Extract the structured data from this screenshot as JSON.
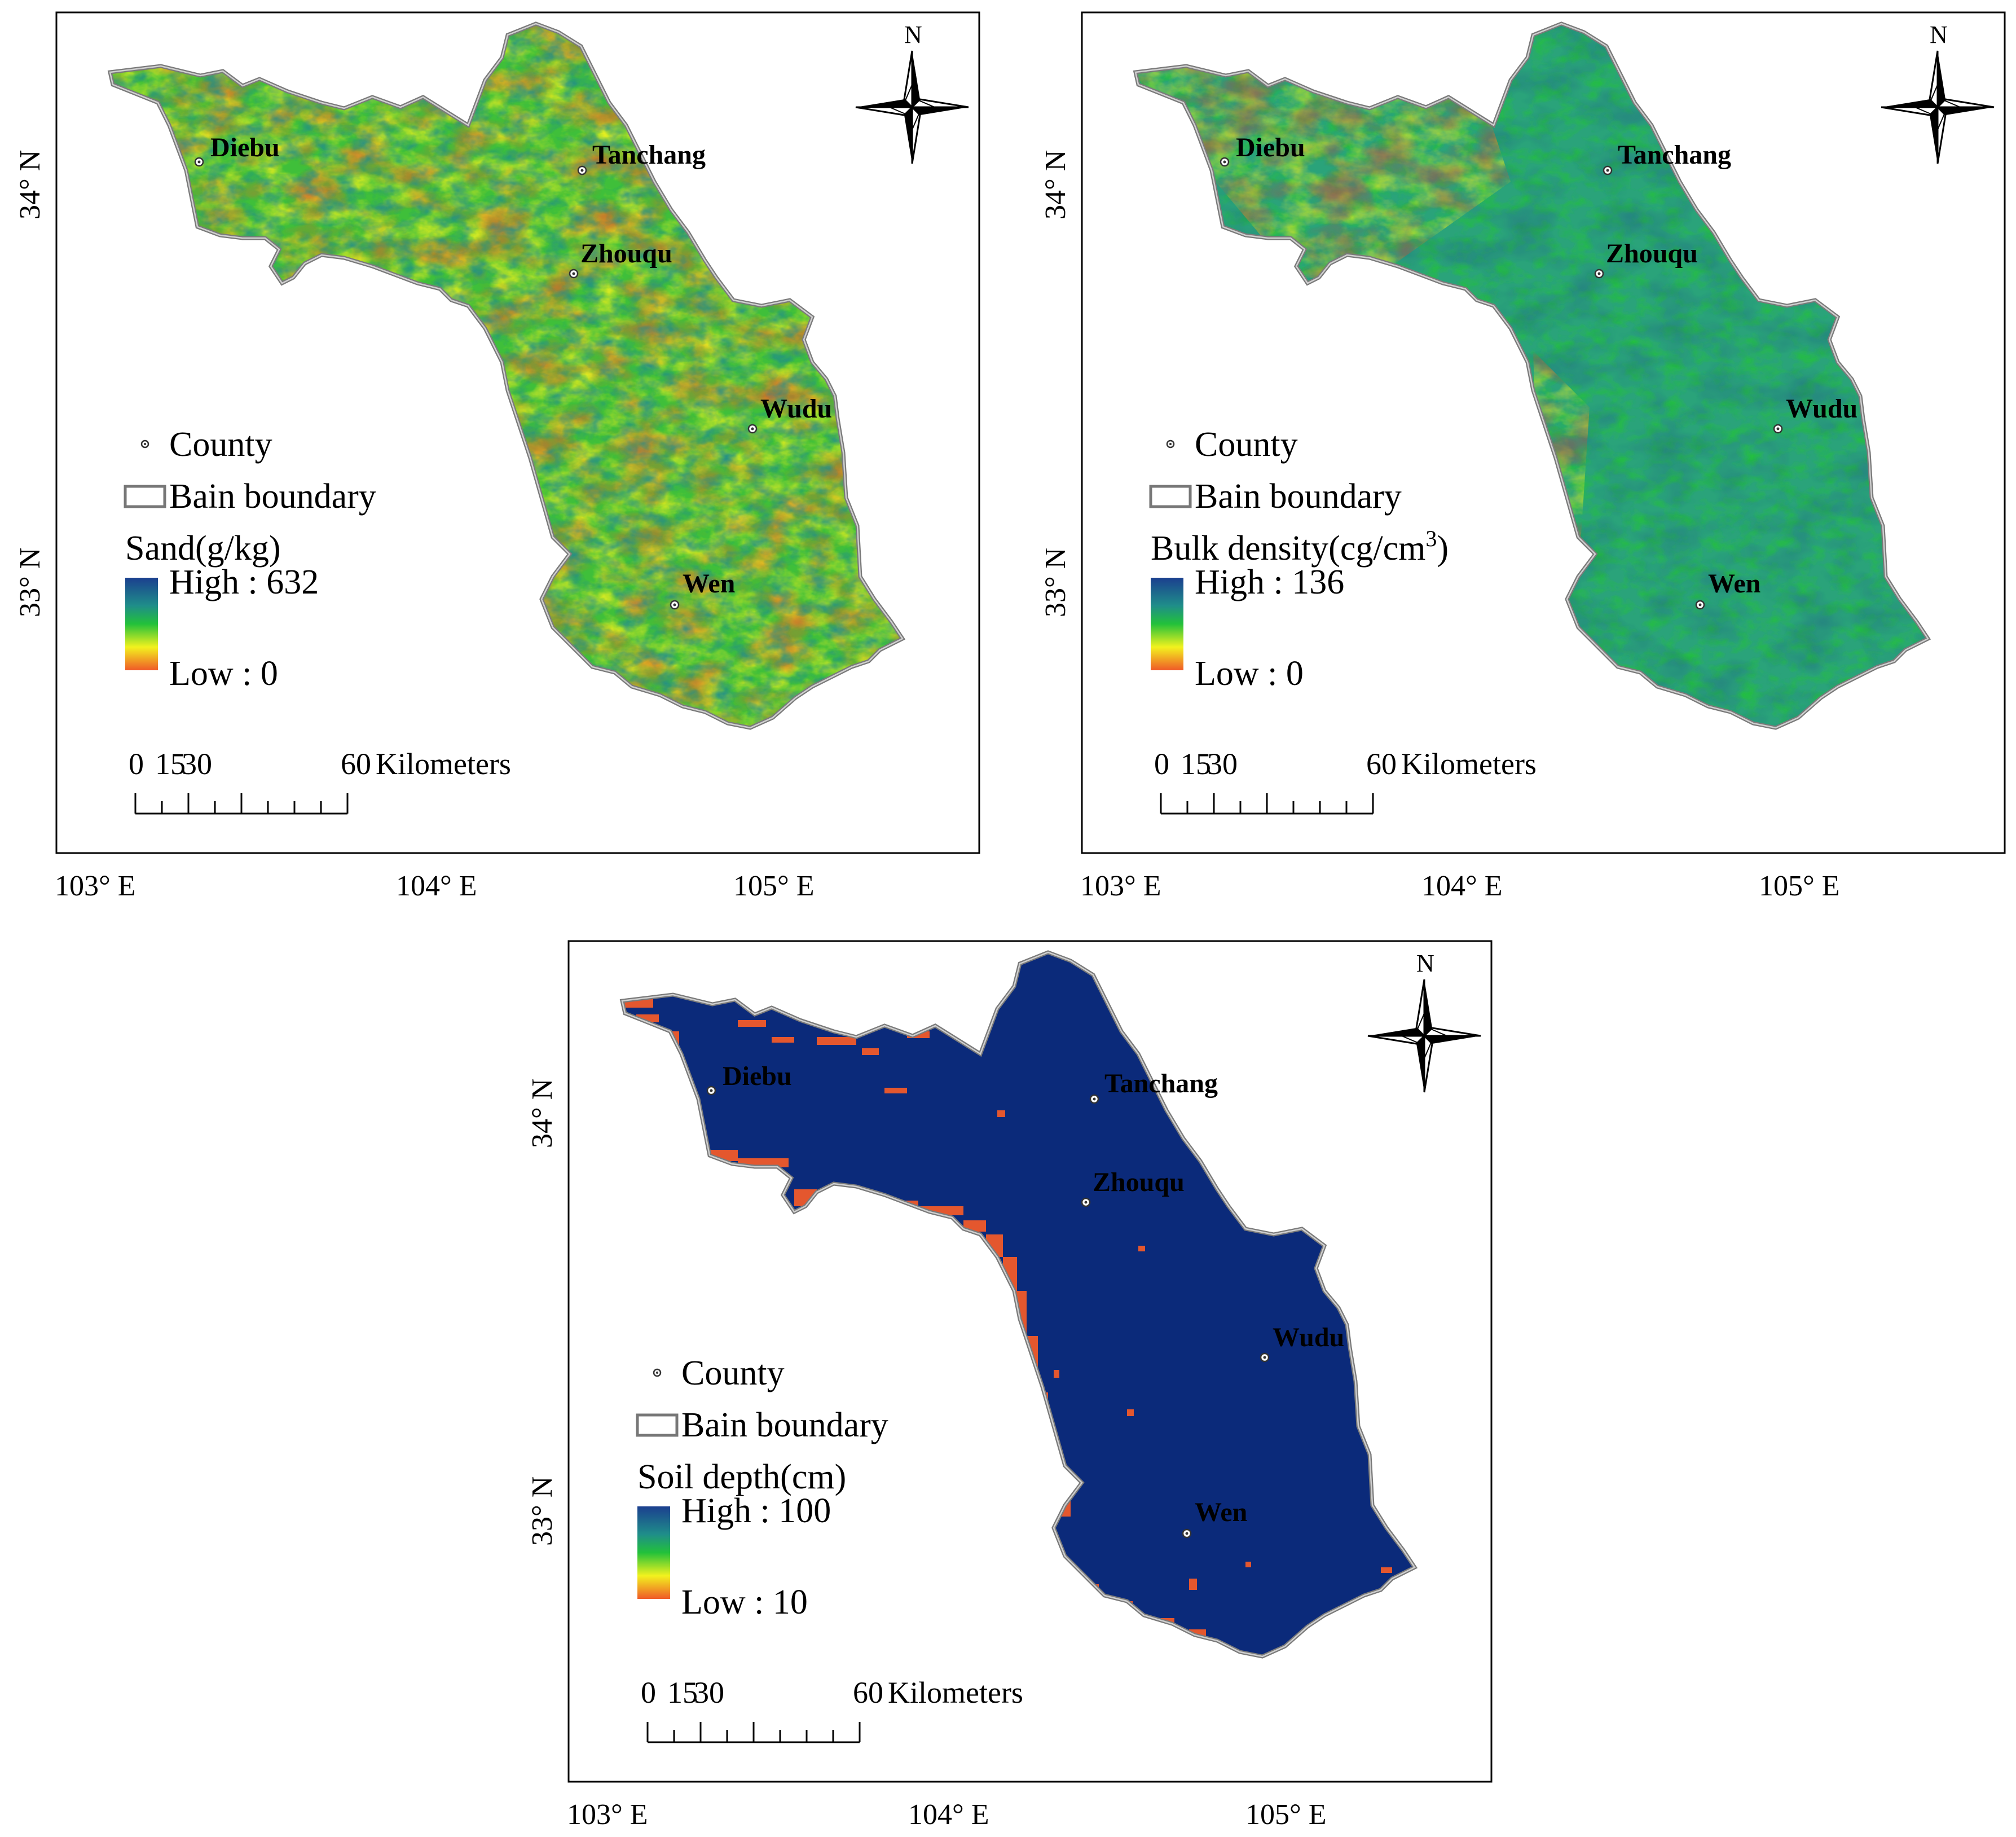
{
  "colors": {
    "ramp_high": "#1b3f8f",
    "ramp_mid_teal": "#1f8d8a",
    "ramp_green": "#22c13a",
    "ramp_yellow": "#f2f21e",
    "ramp_low": "#f05a28",
    "sand_base": "#3fbf3a",
    "bulk_base": "#2aa37a",
    "depth_base": "#0b2a7a",
    "depth_low": "#e4572e",
    "basin_outline": "#7a7a7a",
    "frame": "#000000"
  },
  "icons": {
    "north_arrow": "north-arrow-icon",
    "county_point": "county-point-icon",
    "boundary_swatch": "boundary-swatch-icon"
  },
  "panels": [
    {
      "id": "sand",
      "base_color_key": "sand_base",
      "legend": {
        "county": "County",
        "boundary": "Bain boundary",
        "title": "Sand(g/kg)",
        "high": "High : 632",
        "low": "Low : 0"
      },
      "scale_bar": {
        "ticks": [
          "0",
          "15",
          "30",
          "60"
        ],
        "unit": "Kilometers"
      },
      "north_label": "N",
      "x_ticks": [
        "103° E",
        "104° E",
        "105° E"
      ],
      "y_ticks": [
        "34° N",
        "33° N"
      ],
      "counties": [
        "Diebu",
        "Tanchang",
        "Zhouqu",
        "Wudu",
        "Wen"
      ]
    },
    {
      "id": "bulk",
      "base_color_key": "bulk_base",
      "legend": {
        "county": "County",
        "boundary": "Bain boundary",
        "title": "Bulk density(cg/cm",
        "title_sup": "3",
        "title_close": ")",
        "high": "High : 136",
        "low": "Low : 0"
      },
      "scale_bar": {
        "ticks": [
          "0",
          "15",
          "30",
          "60"
        ],
        "unit": "Kilometers"
      },
      "north_label": "N",
      "x_ticks": [
        "103° E",
        "104° E",
        "105° E"
      ],
      "y_ticks": [
        "34° N",
        "33° N"
      ],
      "counties": [
        "Diebu",
        "Tanchang",
        "Zhouqu",
        "Wudu",
        "Wen"
      ]
    },
    {
      "id": "depth",
      "base_color_key": "depth_base",
      "legend": {
        "county": "County",
        "boundary": "Bain boundary",
        "title": "Soil depth(cm)",
        "high": "High : 100",
        "low": "Low : 10"
      },
      "scale_bar": {
        "ticks": [
          "0",
          "15",
          "30",
          "60"
        ],
        "unit": "Kilometers"
      },
      "north_label": "N",
      "x_ticks": [
        "103° E",
        "104° E",
        "105° E"
      ],
      "y_ticks": [
        "34° N",
        "33° N"
      ],
      "counties": [
        "Diebu",
        "Tanchang",
        "Zhouqu",
        "Wudu",
        "Wen"
      ]
    }
  ]
}
